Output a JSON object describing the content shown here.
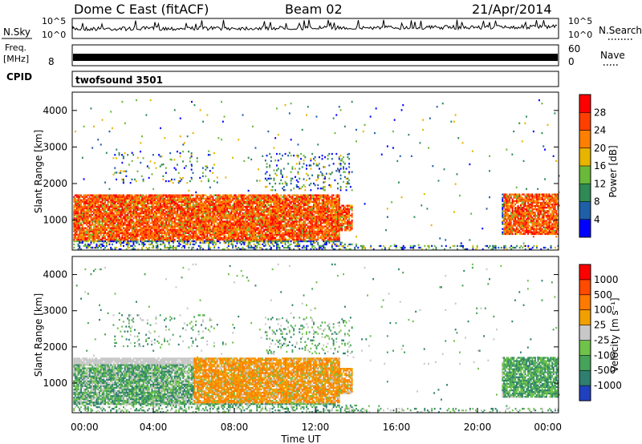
{
  "header": {
    "station": "Dome C East (fitACF)",
    "beam": "Beam 02",
    "date": "21/Apr/2014"
  },
  "side_labels": {
    "nsky": "N.Sky",
    "freq": "Freq.",
    "freq_unit": "[MHz]",
    "cpid": "CPID",
    "nsearch": "N.Search",
    "nave": "Nave",
    "cpid_value": "twofsound 3501"
  },
  "strips": {
    "noise_ticks_left": [
      "10^5",
      "10^0"
    ],
    "noise_ticks_right": [
      "10^5",
      "10^0"
    ],
    "freq_ticks_left": [
      "8"
    ],
    "nave_ticks_right": [
      "60",
      "0"
    ]
  },
  "chart_data": [
    {
      "type": "heatmap",
      "name": "power-panel",
      "ylabel": "Slant Range [km]",
      "xlim": [
        0,
        24
      ],
      "ylim": [
        180,
        4500
      ],
      "y_ticks": [
        "4000",
        "3000",
        "2000",
        "1000"
      ],
      "colorbar": {
        "label": "Power [dB]",
        "ticks": [
          "28",
          "24",
          "20",
          "16",
          "12",
          "8",
          "4"
        ],
        "colors": [
          "#0000ff",
          "#1f5fa8",
          "#2f8a54",
          "#6ab93a",
          "#e7b500",
          "#ff7f00",
          "#ff3f00",
          "#ff0000"
        ]
      }
    },
    {
      "type": "heatmap",
      "name": "velocity-panel",
      "ylabel": "Slant Range [km]",
      "xlim": [
        0,
        24
      ],
      "ylim": [
        180,
        4500
      ],
      "y_ticks": [
        "4000",
        "3000",
        "2000",
        "1000"
      ],
      "colorbar": {
        "label": "Velocity [m s⁻¹]",
        "ticks": [
          "1000",
          "500",
          "100",
          "25",
          "-25",
          "-100",
          "-500",
          "-1000"
        ],
        "colors": [
          "#2040c0",
          "#2f7f6f",
          "#46a35a",
          "#6fc24a",
          "#c8c8c8",
          "#f2a000",
          "#ff7a00",
          "#ff4a00",
          "#ff0000"
        ]
      }
    }
  ],
  "x_axis": {
    "ticks": [
      "00:00",
      "04:00",
      "08:00",
      "12:00",
      "16:00",
      "20:00",
      "00:00"
    ],
    "label": "Time UT"
  }
}
